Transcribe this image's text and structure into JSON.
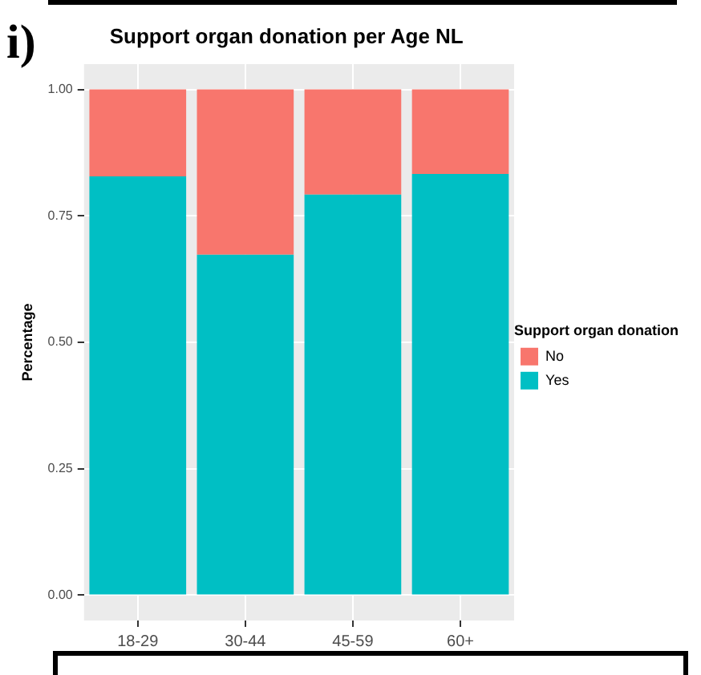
{
  "chart_data": {
    "type": "bar",
    "stacked": true,
    "title": "Support organ donation per Age NL",
    "ylabel": "Percentage",
    "legend_title": "Support organ donation",
    "annotations": [
      "i)"
    ],
    "categories": [
      "18-29",
      "30-44",
      "45-59",
      "60+"
    ],
    "series": [
      {
        "name": "Yes",
        "color": "#00bfc4",
        "values": [
          0.828,
          0.673,
          0.792,
          0.833
        ]
      },
      {
        "name": "No",
        "color": "#f8766d",
        "values": [
          0.172,
          0.327,
          0.208,
          0.167
        ]
      }
    ],
    "ylim": [
      -0.05,
      1.05
    ],
    "yticks": [
      {
        "value": 0,
        "label": "0.00"
      },
      {
        "value": 0.25,
        "label": "0.25"
      },
      {
        "value": 0.5,
        "label": "0.50"
      },
      {
        "value": 0.75,
        "label": "0.75"
      },
      {
        "value": 1,
        "label": "1.00"
      }
    ],
    "grid": true,
    "legend": "right"
  }
}
